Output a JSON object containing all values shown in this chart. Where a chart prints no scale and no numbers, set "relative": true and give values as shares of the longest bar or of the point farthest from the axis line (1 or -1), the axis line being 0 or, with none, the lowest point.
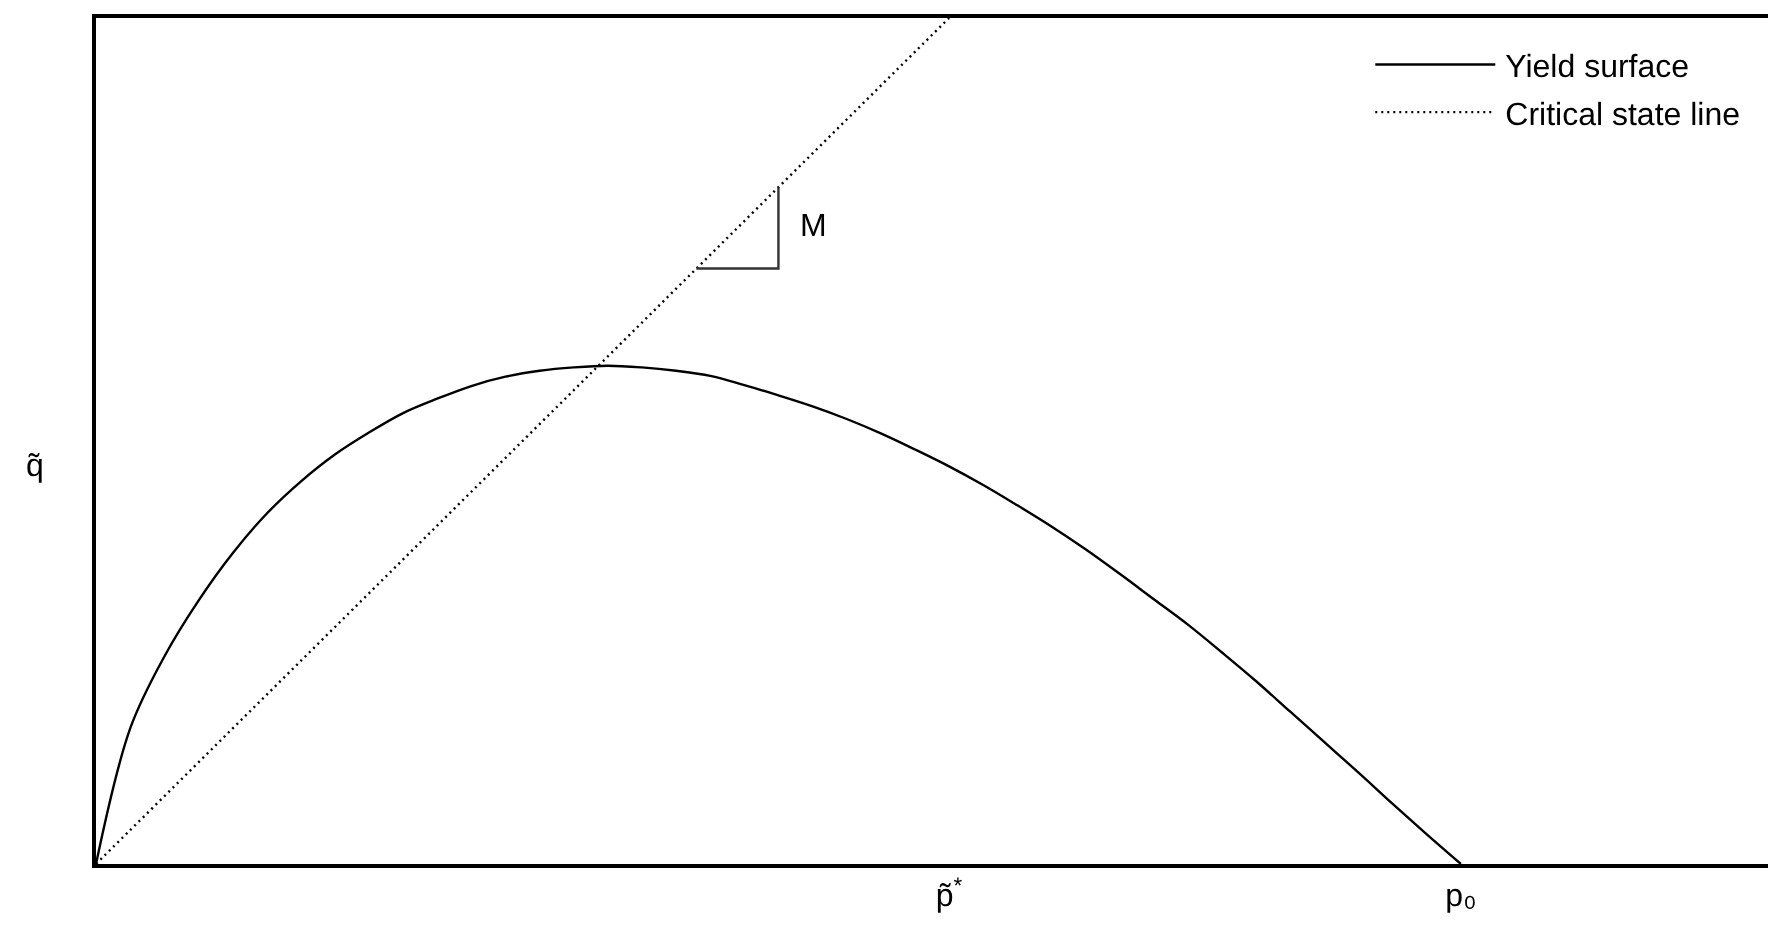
{
  "chart_data": {
    "type": "line",
    "ylabel": "q̃",
    "relative": true,
    "legend": "top right",
    "tick_labels": "x",
    "line_style": "solid",
    "categories": [
      null,
      null,
      null,
      null,
      null,
      null,
      null,
      null,
      null,
      null,
      null,
      null,
      null,
      null,
      null,
      null,
      null,
      null,
      null,
      null,
      null,
      null,
      null,
      null,
      null,
      "p̃$^{*}$",
      null,
      null,
      null,
      null,
      null,
      null,
      null,
      null,
      null,
      null,
      null,
      null,
      null,
      null,
      "p₀",
      null,
      null,
      null,
      null,
      null,
      null,
      null,
      null,
      null
    ],
    "series": [
      {
        "name": "Yield surface",
        "color": "#000000",
        "values": [
          0,
          0.16,
          0.245,
          0.311,
          0.367,
          0.414,
          0.452,
          0.484,
          0.51,
          0.533,
          0.55,
          0.565,
          0.576,
          0.583,
          0.587,
          0.589,
          0.587,
          0.583,
          0.577,
          0.566,
          0.554,
          0.541,
          0.526,
          0.509,
          0.49,
          0.47,
          0.448,
          0.424,
          0.399,
          0.372,
          0.343,
          0.313,
          0.283,
          0.25,
          0.216,
          0.18,
          0.144,
          0.108,
          0.071,
          0.035,
          0,
          null,
          null,
          null,
          null,
          null,
          null,
          null,
          null,
          null
        ]
      },
      {
        "name": "Critical state line",
        "color": "#000000",
        "line_style": "dotted",
        "values": [
          0,
          0.04,
          0.08,
          0.12,
          0.16,
          0.2,
          0.24,
          0.28,
          0.32,
          0.36,
          0.4,
          0.44,
          0.48,
          0.52,
          0.56,
          0.6,
          0.64,
          0.68,
          0.72,
          0.76,
          0.8,
          0.84,
          0.88,
          0.92,
          0.96,
          1.0,
          null,
          null,
          null,
          null,
          null,
          null,
          null,
          null,
          null,
          null,
          null,
          null,
          null,
          null,
          null,
          null,
          null,
          null,
          null,
          null,
          null,
          null,
          null,
          null
        ]
      }
    ],
    "annotations": [
      "M"
    ]
  }
}
